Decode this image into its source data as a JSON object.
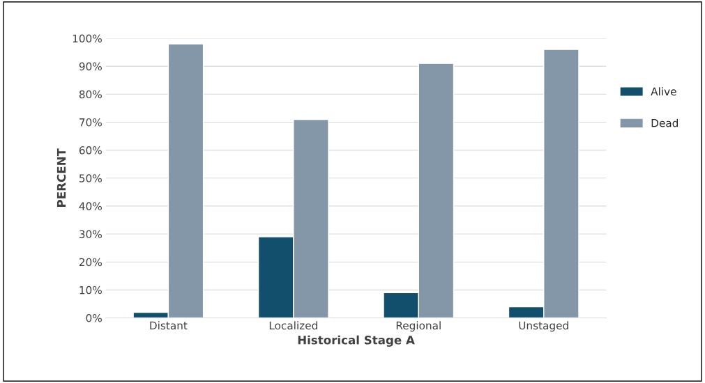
{
  "chart_data": {
    "type": "bar",
    "xlabel": "Historical Stage A",
    "ylabel": "PERCENT",
    "categories": [
      "Distant",
      "Localized",
      "Regional",
      "Unstaged"
    ],
    "series": [
      {
        "name": "Alive",
        "color": "#124f6c",
        "values": [
          2,
          29,
          9,
          4
        ]
      },
      {
        "name": "Dead",
        "color": "#8497a8",
        "values": [
          98,
          71,
          91,
          96
        ]
      }
    ],
    "ylim": [
      0,
      100
    ],
    "yticks": [
      {
        "value": 0,
        "label": "0%"
      },
      {
        "value": 10,
        "label": "10%"
      },
      {
        "value": 20,
        "label": "20%"
      },
      {
        "value": 30,
        "label": "30%"
      },
      {
        "value": 40,
        "label": "40%"
      },
      {
        "value": 50,
        "label": "50%"
      },
      {
        "value": 60,
        "label": "60%"
      },
      {
        "value": 70,
        "label": "70%"
      },
      {
        "value": 80,
        "label": "80%"
      },
      {
        "value": 90,
        "label": "90%"
      },
      {
        "value": 100,
        "label": "100%"
      }
    ],
    "grid": "y",
    "legend": "right"
  }
}
